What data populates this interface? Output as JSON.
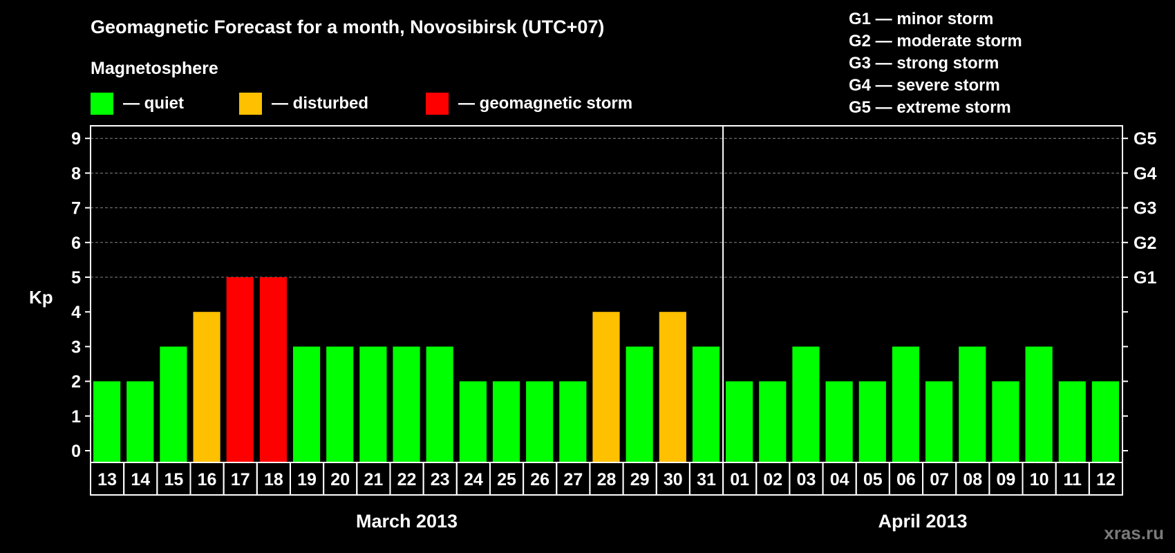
{
  "header": {
    "title": "Geomagnetic Forecast for a month, Novosibirsk (UTC+07)",
    "subtitle": "Magnetosphere",
    "legend": [
      {
        "label": "— quiet",
        "color": "#00ff00"
      },
      {
        "label": "— disturbed",
        "color": "#ffc000"
      },
      {
        "label": "— geomagnetic storm",
        "color": "#ff0000"
      }
    ],
    "storm_scale": [
      "G1 — minor storm",
      "G2 — moderate storm",
      "G3 — strong storm",
      "G4 — severe storm",
      "G5 — extreme storm"
    ]
  },
  "watermark": "xras.ru",
  "chart_data": {
    "type": "bar",
    "title": "Geomagnetic Forecast for a month, Novosibirsk (UTC+07)",
    "ylabel": "Kp",
    "ylim": [
      0,
      9
    ],
    "yticks": [
      "0",
      "1",
      "2",
      "3",
      "4",
      "5",
      "6",
      "7",
      "8",
      "9"
    ],
    "right_ticks": [
      {
        "value": 5,
        "label": "G1"
      },
      {
        "value": 6,
        "label": "G2"
      },
      {
        "value": 7,
        "label": "G3"
      },
      {
        "value": 8,
        "label": "G4"
      },
      {
        "value": 9,
        "label": "G5"
      }
    ],
    "months": [
      {
        "label": "March 2013",
        "categories": [
          "13",
          "14",
          "15",
          "16",
          "17",
          "18",
          "19",
          "20",
          "21",
          "22",
          "23",
          "24",
          "25",
          "26",
          "27",
          "28",
          "29",
          "30",
          "31"
        ],
        "values": [
          2,
          2,
          3,
          4,
          5,
          5,
          3,
          3,
          3,
          3,
          3,
          2,
          2,
          2,
          2,
          4,
          3,
          4,
          3
        ]
      },
      {
        "label": "April 2013",
        "categories": [
          "01",
          "02",
          "03",
          "04",
          "05",
          "06",
          "07",
          "08",
          "09",
          "10",
          "11",
          "12"
        ],
        "values": [
          2,
          2,
          3,
          2,
          2,
          3,
          2,
          3,
          2,
          3,
          2,
          2
        ]
      }
    ],
    "colors": {
      "quiet": "#00ff00",
      "disturbed": "#ffc000",
      "storm": "#ff0000"
    }
  }
}
